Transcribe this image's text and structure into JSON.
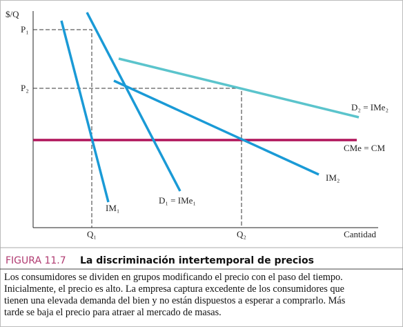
{
  "axes": {
    "y_label": "$/Q",
    "x_label": "Cantidad",
    "p1": "P₁",
    "p2": "P₂",
    "q1": "Q₁",
    "q2": "Q₂"
  },
  "curves": {
    "d2": "D₂ = IMe₂",
    "cme": "CMe = CM",
    "im2": "IM₂",
    "d1": "D₁ = IMe₁",
    "im1": "IM₁"
  },
  "figure": {
    "number": "FIGURA 11.7",
    "title": "La discriminación intertemporal de precios",
    "lines": [
      "Los consumidores se dividen en grupos modificando el precio con el paso del tiempo.",
      "Inicialmente, el precio es alto. La empresa captura excedente de los consumidores que",
      "tienen una elevada demanda del bien y no están dispuestos a esperar a comprarlo. Más",
      "tarde se baja el precio para atraer al mercado de masas."
    ]
  }
}
